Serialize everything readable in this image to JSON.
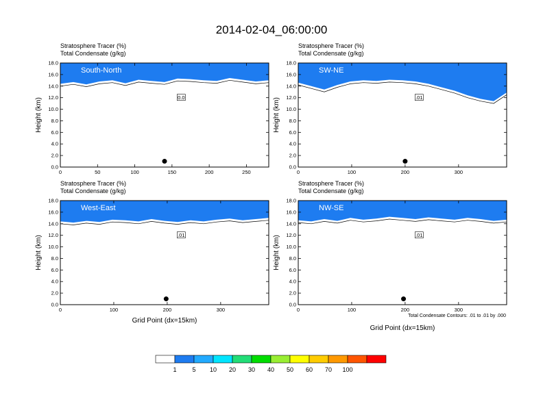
{
  "figure": {
    "title": "2014-02-04_06:00:00",
    "footnote": "Total Condensate Contours: .01 to .01 by .000"
  },
  "colorbar": {
    "levels": [
      "1",
      "5",
      "10",
      "20",
      "30",
      "40",
      "50",
      "60",
      "70",
      "100"
    ],
    "colors": [
      "#ffffff",
      "#1e7cf0",
      "#22aaff",
      "#00e5ff",
      "#22dd77",
      "#00dd00",
      "#99ee33",
      "#ffff00",
      "#ffcc00",
      "#ff9900",
      "#ff5500",
      "#ff0000"
    ]
  },
  "chart_data": [
    {
      "type": "heatmap",
      "region": "South-North",
      "title_line1": "Stratosphere Tracer   (%)",
      "title_line2": "Total Condensate   (g/kg)",
      "ylabel": "Height (km)",
      "xlabel": "",
      "xlim": [
        0,
        280
      ],
      "ylim": [
        0,
        18
      ],
      "x_ticks": [
        0,
        50,
        100,
        150,
        200,
        250
      ],
      "y_ticks": [
        "0.0",
        "2.0",
        "4.0",
        "6.0",
        "8.0",
        "10.0",
        "12.0",
        "14.0",
        "16.0",
        "18.0"
      ],
      "tracer_base_km": [
        14.0,
        14.3,
        13.9,
        14.4,
        14.6,
        14.1,
        14.7,
        14.5,
        14.3,
        14.9,
        14.8,
        14.6,
        14.5,
        15.0,
        14.7,
        14.4,
        14.6
      ],
      "marker": {
        "x": 140,
        "y": 1.0
      },
      "contour_label": "0.0"
    },
    {
      "type": "heatmap",
      "region": "SW-NE",
      "title_line1": "Stratosphere Tracer   (%)",
      "title_line2": "Total Condensate   (g/kg)",
      "ylabel": "Height (km)",
      "xlabel": "",
      "xlim": [
        0,
        390
      ],
      "ylim": [
        0,
        18
      ],
      "x_ticks": [
        0,
        100,
        200,
        300
      ],
      "y_ticks": [
        "0.0",
        "2.0",
        "4.0",
        "6.0",
        "8.0",
        "10.0",
        "12.0",
        "14.0",
        "16.0",
        "18.0"
      ],
      "tracer_base_km": [
        14.2,
        13.6,
        13.0,
        13.8,
        14.4,
        14.6,
        14.5,
        14.7,
        14.6,
        14.4,
        14.0,
        13.4,
        12.8,
        12.0,
        11.4,
        11.0,
        12.5
      ],
      "marker": {
        "x": 200,
        "y": 1.0
      },
      "contour_label": ".01"
    },
    {
      "type": "heatmap",
      "region": "West-East",
      "title_line1": "Stratosphere Tracer   (%)",
      "title_line2": "Total Condensate   (g/kg)",
      "ylabel": "Height (km)",
      "xlabel": "Grid Point (dx=15km)",
      "xlim": [
        0,
        390
      ],
      "ylim": [
        0,
        18
      ],
      "x_ticks": [
        0,
        100,
        200,
        300
      ],
      "y_ticks": [
        "0.0",
        "2.0",
        "4.0",
        "6.0",
        "8.0",
        "10.0",
        "12.0",
        "14.0",
        "16.0",
        "18.0"
      ],
      "tracer_base_km": [
        14.0,
        13.8,
        14.1,
        13.9,
        14.3,
        14.2,
        14.0,
        14.4,
        14.1,
        13.9,
        14.2,
        14.0,
        14.3,
        14.5,
        14.2,
        14.4,
        14.6
      ],
      "marker": {
        "x": 198,
        "y": 1.0
      },
      "contour_label": ".01"
    },
    {
      "type": "heatmap",
      "region": "NW-SE",
      "title_line1": "Stratosphere Tracer   (%)",
      "title_line2": "Total Condensate   (g/kg)",
      "ylabel": "Height (km)",
      "xlabel": "Grid Point (dx=15km)",
      "xlim": [
        0,
        390
      ],
      "ylim": [
        0,
        18
      ],
      "x_ticks": [
        0,
        100,
        200,
        300
      ],
      "y_ticks": [
        "0.0",
        "2.0",
        "4.0",
        "6.0",
        "8.0",
        "10.0",
        "12.0",
        "14.0",
        "16.0",
        "18.0"
      ],
      "tracer_base_km": [
        14.2,
        14.0,
        14.4,
        14.1,
        14.6,
        14.3,
        14.5,
        14.8,
        14.6,
        14.4,
        14.7,
        14.5,
        14.3,
        14.6,
        14.4,
        14.1,
        14.3
      ],
      "marker": {
        "x": 197,
        "y": 1.0
      },
      "contour_label": ".01"
    }
  ]
}
